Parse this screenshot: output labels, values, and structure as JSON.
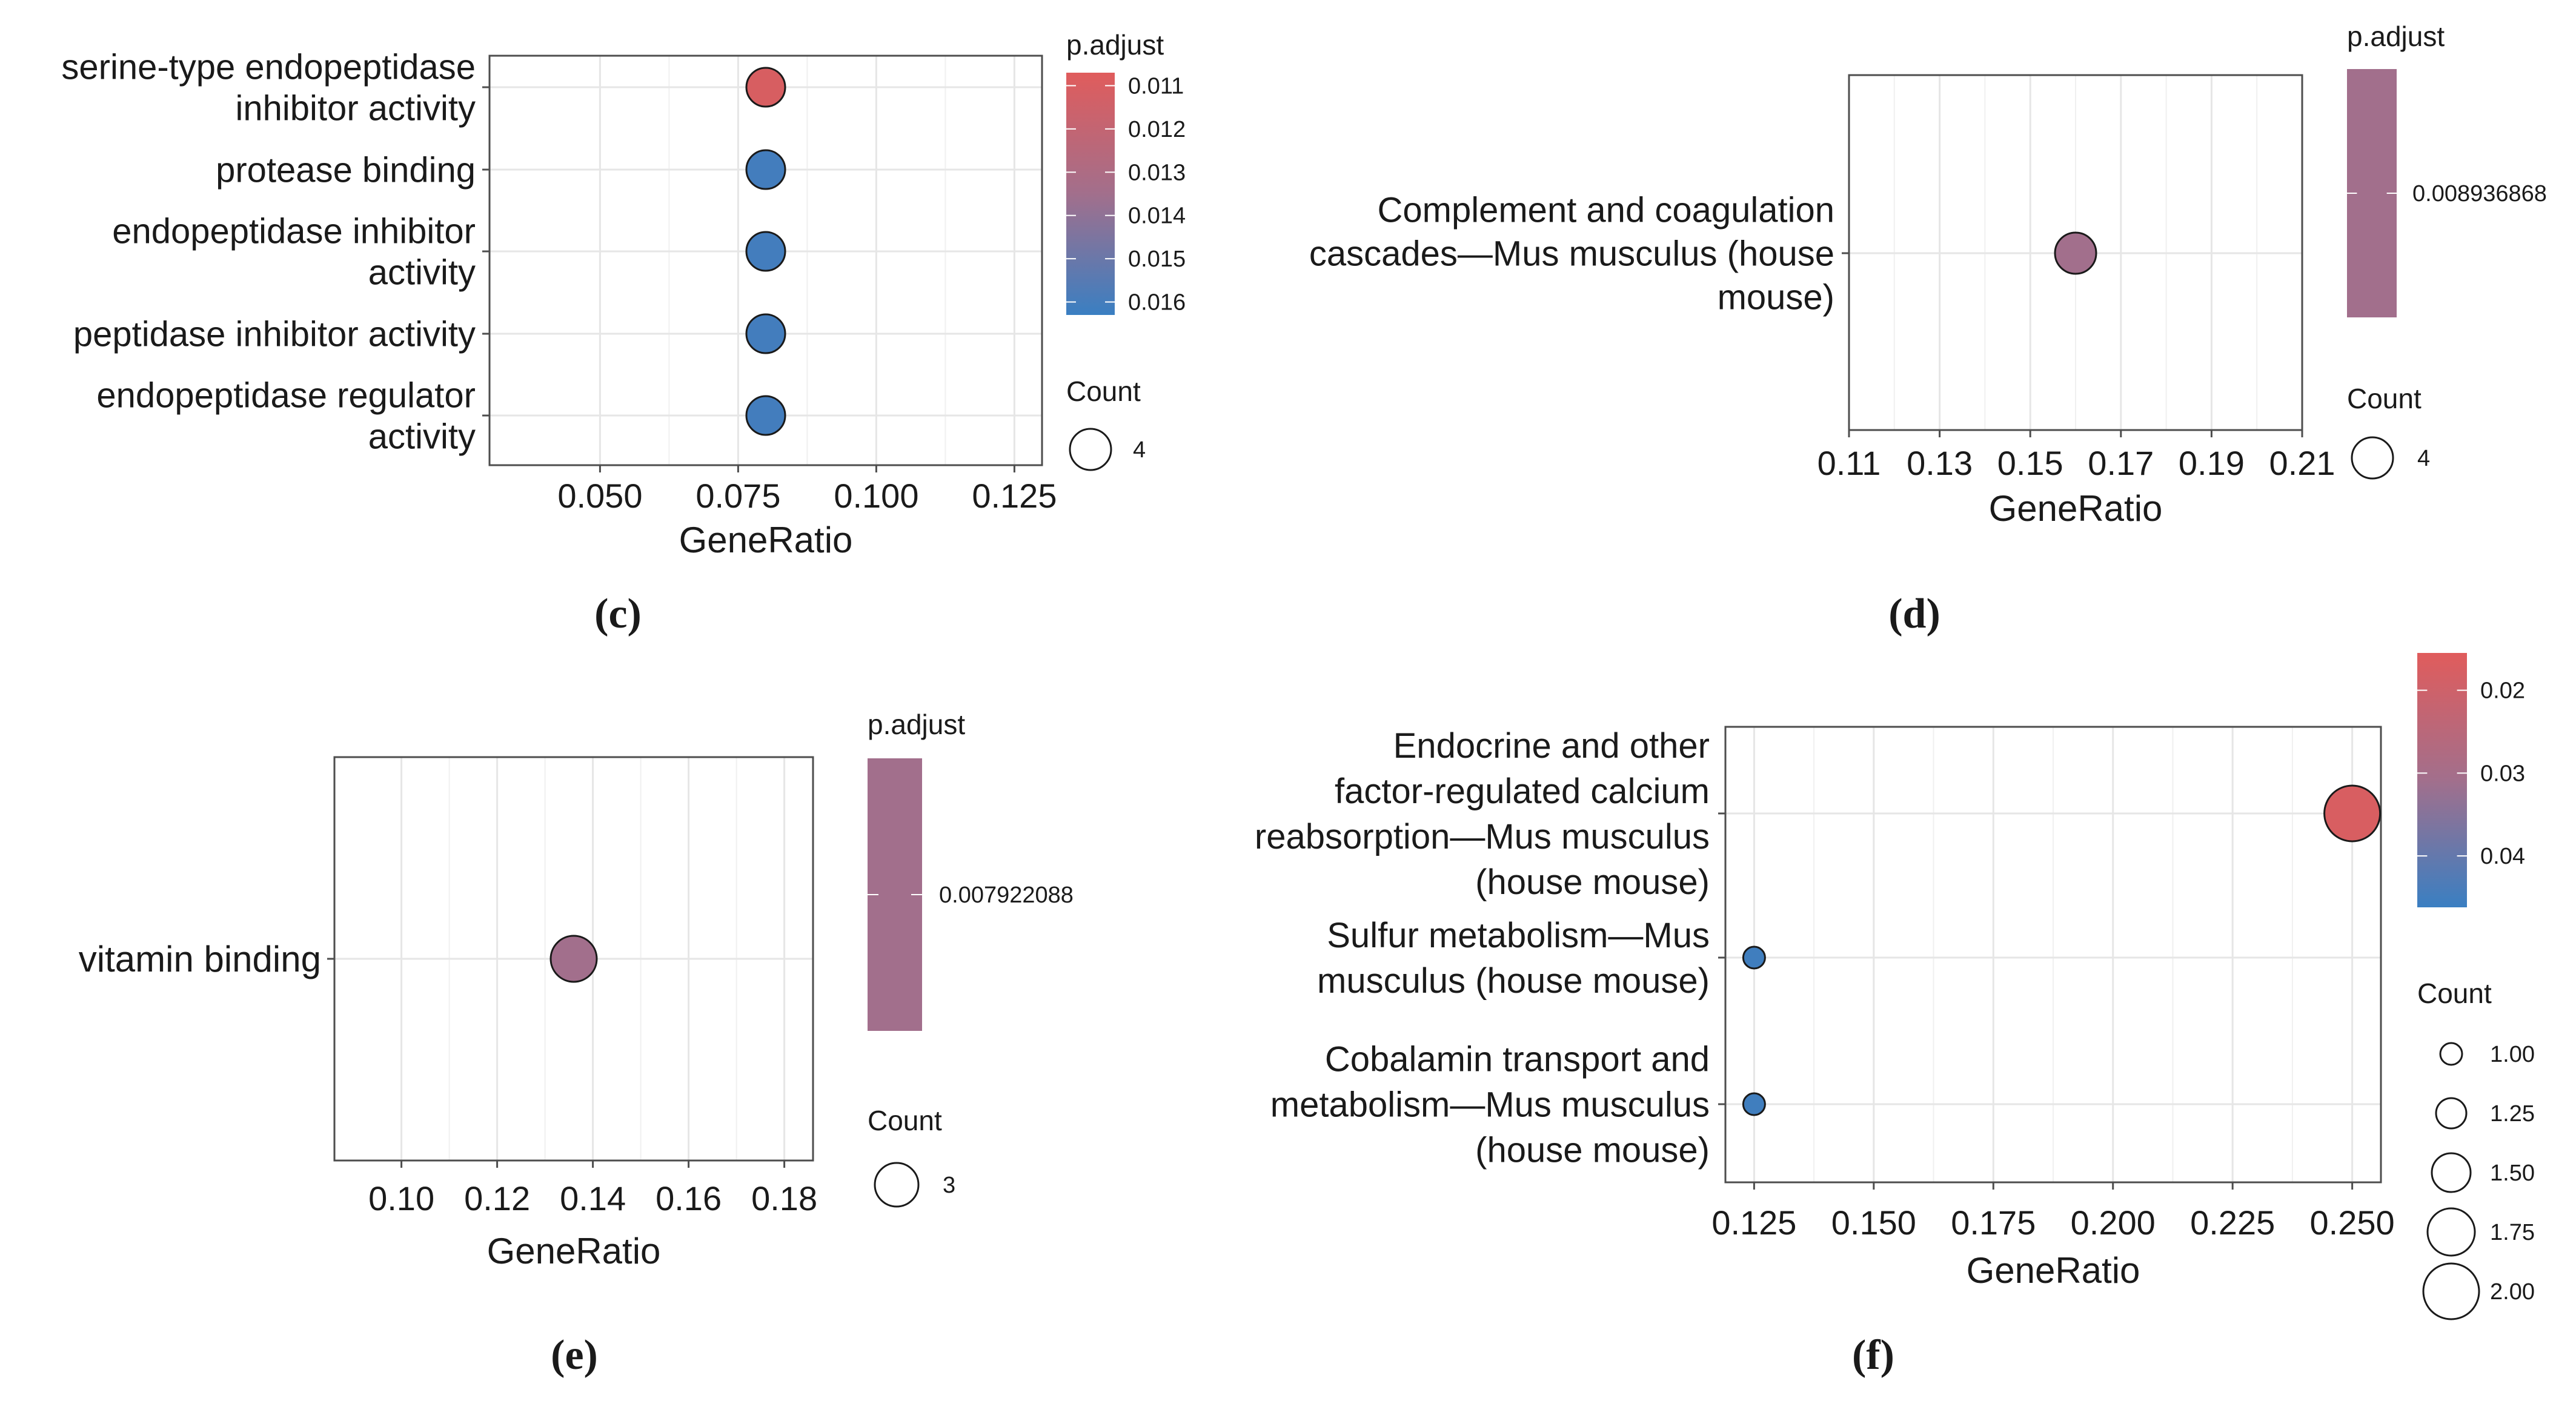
{
  "colors": {
    "low_padj": "#e05c5c",
    "high_padj": "#3a7fc2",
    "mid": "#a26f8c",
    "grid": "#e6e6e6",
    "frame": "#4d4d4d",
    "text": "#1a1a1a"
  },
  "chart_data": [
    {
      "panel": "c",
      "type": "scatter",
      "title": "",
      "xlabel": "GeneRatio",
      "ylabel": "",
      "xlim": [
        0.03,
        0.13
      ],
      "xticks": [
        0.05,
        0.075,
        0.1,
        0.125
      ],
      "xtick_labels": [
        "0.050",
        "0.075",
        "0.100",
        "0.125"
      ],
      "categories": [
        [
          "serine-type endopeptidase",
          "inhibitor activity"
        ],
        [
          "protease binding"
        ],
        [
          "endopeptidase inhibitor",
          "activity"
        ],
        [
          "peptidase inhibitor activity"
        ],
        [
          "endopeptidase regulator",
          "activity"
        ]
      ],
      "x": [
        0.08,
        0.08,
        0.08,
        0.08,
        0.08
      ],
      "p_adjust": [
        0.011,
        0.016,
        0.016,
        0.016,
        0.016
      ],
      "count": [
        4,
        4,
        4,
        4,
        4
      ],
      "color_legend": {
        "title": "p.adjust",
        "range": [
          0.0107,
          0.0163
        ],
        "ticks": [
          0.011,
          0.012,
          0.013,
          0.014,
          0.015,
          0.016
        ],
        "labels": [
          "0.011",
          "0.012",
          "0.013",
          "0.014",
          "0.015",
          "0.016"
        ]
      },
      "size_legend": {
        "title": "Count",
        "values": [
          4
        ],
        "labels": [
          "4"
        ]
      }
    },
    {
      "panel": "d",
      "type": "scatter",
      "title": "",
      "xlabel": "GeneRatio",
      "ylabel": "",
      "xlim": [
        0.11,
        0.21
      ],
      "xticks": [
        0.11,
        0.13,
        0.15,
        0.17,
        0.19,
        0.21
      ],
      "xtick_labels": [
        "0.11",
        "0.13",
        "0.15",
        "0.17",
        "0.19",
        "0.21"
      ],
      "categories": [
        [
          "Complement and coagulation",
          "cascades—Mus musculus (house",
          "mouse)"
        ]
      ],
      "x": [
        0.16
      ],
      "p_adjust": [
        0.008936868
      ],
      "count": [
        4
      ],
      "color_legend": {
        "title": "p.adjust",
        "ticks": [
          0.008936868
        ],
        "labels": [
          "0.008936868"
        ]
      },
      "size_legend": {
        "title": "Count",
        "values": [
          4
        ],
        "labels": [
          "4"
        ]
      }
    },
    {
      "panel": "e",
      "type": "scatter",
      "title": "",
      "xlabel": "GeneRatio",
      "ylabel": "",
      "xlim": [
        0.086,
        0.186
      ],
      "xticks": [
        0.1,
        0.12,
        0.14,
        0.16,
        0.18
      ],
      "xtick_labels": [
        "0.10",
        "0.12",
        "0.14",
        "0.16",
        "0.18"
      ],
      "categories": [
        [
          "vitamin binding"
        ]
      ],
      "x": [
        0.136
      ],
      "p_adjust": [
        0.007922088
      ],
      "count": [
        3
      ],
      "color_legend": {
        "title": "p.adjust",
        "ticks": [
          0.007922088
        ],
        "labels": [
          "0.007922088"
        ]
      },
      "size_legend": {
        "title": "Count",
        "values": [
          3
        ],
        "labels": [
          "3"
        ]
      }
    },
    {
      "panel": "f",
      "type": "scatter",
      "title": "",
      "xlabel": "GeneRatio",
      "ylabel": "",
      "xlim": [
        0.119,
        0.256
      ],
      "xticks": [
        0.125,
        0.15,
        0.175,
        0.2,
        0.225,
        0.25
      ],
      "xtick_labels": [
        "0.125",
        "0.150",
        "0.175",
        "0.200",
        "0.225",
        "0.250"
      ],
      "categories": [
        [
          "Endocrine and other",
          "factor-regulated calcium",
          "reabsorption—Mus musculus",
          "(house mouse)"
        ],
        [
          "Sulfur metabolism—Mus",
          "musculus (house mouse)"
        ],
        [
          "Cobalamin transport and",
          "metabolism—Mus musculus",
          "(house mouse)"
        ]
      ],
      "x": [
        0.25,
        0.125,
        0.125
      ],
      "p_adjust": [
        0.017,
        0.045,
        0.045
      ],
      "count": [
        2,
        1,
        1
      ],
      "color_legend": {
        "title": "",
        "range": [
          0.0155,
          0.0462
        ],
        "ticks": [
          0.02,
          0.03,
          0.04
        ],
        "labels": [
          "0.02",
          "0.03",
          "0.04"
        ]
      },
      "size_legend": {
        "title": "Count",
        "values": [
          1.0,
          1.25,
          1.5,
          1.75,
          2.0
        ],
        "labels": [
          "1.00",
          "1.25",
          "1.50",
          "1.75",
          "2.00"
        ]
      }
    }
  ],
  "panel_labels": [
    "(c)",
    "(d)",
    "(e)",
    "(f)"
  ]
}
